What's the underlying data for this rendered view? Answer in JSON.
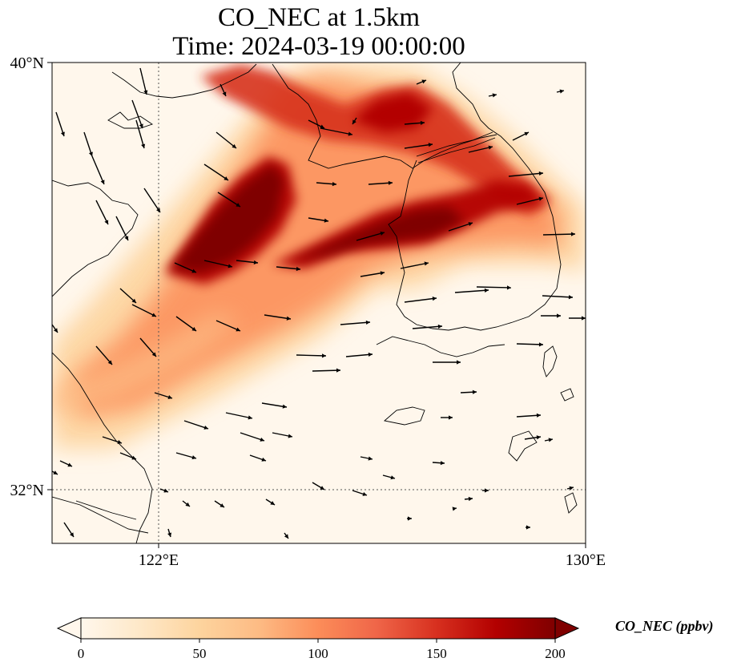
{
  "title_line1": "CO_NEC at 1.5km",
  "title_line2": "Time: 2024-03-19 00:00:00",
  "map": {
    "lon_range": [
      119,
      130
    ],
    "lat_range": [
      31,
      40
    ],
    "lon_ticks": [
      {
        "value": 122,
        "label": "122°E"
      },
      {
        "value": 130,
        "label": "130°E"
      }
    ],
    "lat_ticks": [
      {
        "value": 40,
        "label": "40°N"
      },
      {
        "value": 32,
        "label": "32°N"
      }
    ],
    "gridlines": [
      {
        "axis": "lon",
        "value": 122
      },
      {
        "axis": "lat",
        "value": 32
      }
    ]
  },
  "colorbar": {
    "label": "CO_NEC (ppbv)",
    "min": 0,
    "max": 200,
    "ticks": [
      {
        "value": 0,
        "label": "0"
      },
      {
        "value": 50,
        "label": "50"
      },
      {
        "value": 100,
        "label": "100"
      },
      {
        "value": 150,
        "label": "150"
      },
      {
        "value": 200,
        "label": "200"
      }
    ],
    "colormap": "OrRd",
    "extend": "both",
    "stops": [
      "#fff7ec",
      "#fee8c8",
      "#fdd49e",
      "#fdbb84",
      "#fc8d59",
      "#ef6548",
      "#d7301f",
      "#b30000",
      "#7f0000"
    ]
  }
}
